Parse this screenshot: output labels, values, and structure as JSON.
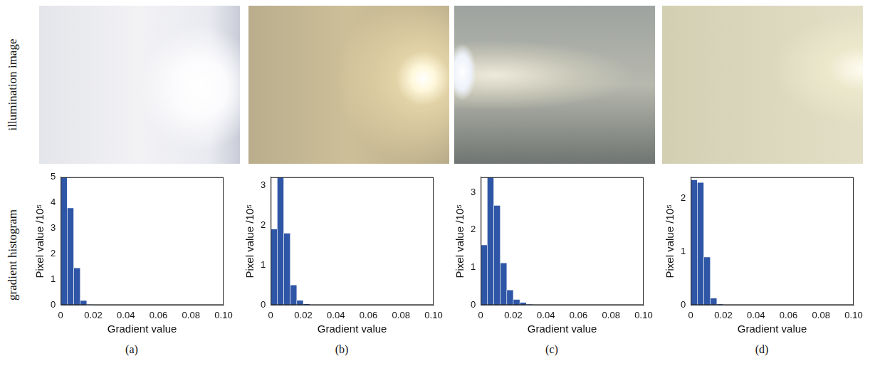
{
  "row_labels": [
    "illumination image",
    "gradient histogram"
  ],
  "chart_data": [
    {
      "type": "histogram",
      "panel": "(a)",
      "x_label": "Gradient value",
      "y_label": "Pixel value /10⁵",
      "bins": [
        0,
        0.004,
        0.008,
        0.012,
        0.016,
        0.02
      ],
      "values": [
        5.0,
        3.8,
        1.45,
        0.18,
        0.02
      ],
      "color": "#2f56a6",
      "grid": false,
      "xlim": [
        0,
        0.1
      ],
      "xticks": [
        0,
        0.02,
        0.04,
        0.06,
        0.08,
        {
          "value": 0.1,
          "label": "0.10"
        }
      ],
      "ylim": [
        0,
        5
      ],
      "yticks": [
        0,
        1,
        2,
        3,
        4,
        5
      ]
    },
    {
      "type": "histogram",
      "panel": "(b)",
      "x_label": "Gradient value",
      "y_label": "Pixel value /10⁵",
      "bins": [
        0,
        0.004,
        0.008,
        0.012,
        0.016,
        0.02,
        0.024
      ],
      "values": [
        1.9,
        3.2,
        1.8,
        0.5,
        0.12,
        0.03
      ],
      "color": "#2f56a6",
      "grid": false,
      "xlim": [
        0,
        0.1
      ],
      "xticks": [
        0,
        0.02,
        0.04,
        0.06,
        0.08,
        {
          "value": 0.1,
          "label": "0.10"
        }
      ],
      "ylim": [
        0,
        3.2
      ],
      "yticks": [
        0,
        1,
        2,
        3
      ]
    },
    {
      "type": "histogram",
      "panel": "(c)",
      "x_label": "Gradient value",
      "y_label": "Pixel value /10⁵",
      "bins": [
        0,
        0.004,
        0.008,
        0.012,
        0.016,
        0.02,
        0.024,
        0.028,
        0.032
      ],
      "values": [
        1.6,
        3.4,
        2.65,
        1.12,
        0.4,
        0.15,
        0.07,
        0.02
      ],
      "color": "#2f56a6",
      "grid": false,
      "xlim": [
        0,
        0.1
      ],
      "xticks": [
        0,
        0.02,
        0.04,
        0.06,
        0.08,
        {
          "value": 0.1,
          "label": "0.10"
        }
      ],
      "ylim": [
        0,
        3.4
      ],
      "yticks": [
        0,
        1,
        2,
        3
      ]
    },
    {
      "type": "histogram",
      "panel": "(d)",
      "x_label": "Gradient value",
      "y_label": "Pixel value /10⁵",
      "bins": [
        0,
        0.004,
        0.008,
        0.012,
        0.016,
        0.02
      ],
      "values": [
        2.35,
        2.3,
        0.9,
        0.13,
        0.02
      ],
      "color": "#2f56a6",
      "grid": false,
      "xlim": [
        0,
        0.1
      ],
      "xticks": [
        0,
        0.02,
        0.04,
        0.06,
        0.08,
        {
          "value": 0.1,
          "label": "0.10"
        }
      ],
      "ylim": [
        0,
        2.4
      ],
      "yticks": [
        0,
        1,
        2
      ]
    }
  ]
}
